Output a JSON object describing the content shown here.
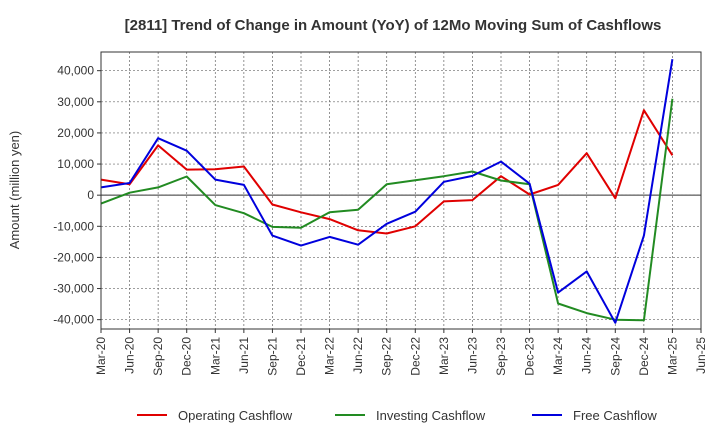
{
  "chart_data": {
    "type": "line",
    "title": "[2811]  Trend of Change in Amount (YoY) of 12Mo Moving Sum of Cashflows",
    "xlabel": "",
    "ylabel": "Amount (million yen)",
    "ylim": [
      -43000,
      46000
    ],
    "yticks": [
      40000,
      30000,
      20000,
      10000,
      0,
      -10000,
      -20000,
      -30000,
      -40000
    ],
    "ytick_labels": [
      "40,000",
      "30,000",
      "20,000",
      "10,000",
      "0",
      "-10,000",
      "-20,000",
      "-30,000",
      "-40,000"
    ],
    "grid": true,
    "legend_position": "bottom",
    "categories": [
      "Mar-20",
      "Jun-20",
      "Sep-20",
      "Dec-20",
      "Mar-21",
      "Jun-21",
      "Sep-21",
      "Dec-21",
      "Mar-22",
      "Jun-22",
      "Sep-22",
      "Dec-22",
      "Mar-23",
      "Jun-23",
      "Sep-23",
      "Dec-23",
      "Mar-24",
      "Jun-24",
      "Sep-24",
      "Dec-24",
      "Mar-25",
      "Jun-25"
    ],
    "series": [
      {
        "name": "Operating Cashflow",
        "color": "#e00000",
        "values": [
          5000,
          3500,
          16000,
          8200,
          8300,
          9200,
          -3000,
          -5500,
          -7700,
          -11300,
          -12300,
          -10000,
          -2000,
          -1600,
          6100,
          200,
          3300,
          13500,
          -1000,
          27300,
          12800,
          null
        ]
      },
      {
        "name": "Investing Cashflow",
        "color": "#228b22",
        "values": [
          -2700,
          800,
          2500,
          6000,
          -3200,
          -5800,
          -10200,
          -10500,
          -5500,
          -4700,
          3500,
          4800,
          6100,
          7600,
          4700,
          3500,
          -34800,
          -37900,
          -40000,
          -40200,
          31000,
          null
        ]
      },
      {
        "name": "Free Cashflow",
        "color": "#0000dd",
        "values": [
          2500,
          3900,
          18300,
          14300,
          5000,
          3300,
          -13000,
          -16200,
          -13400,
          -15900,
          -9200,
          -5300,
          4300,
          6200,
          10800,
          3700,
          -31300,
          -24500,
          -41000,
          -13000,
          43700,
          null
        ]
      }
    ]
  }
}
